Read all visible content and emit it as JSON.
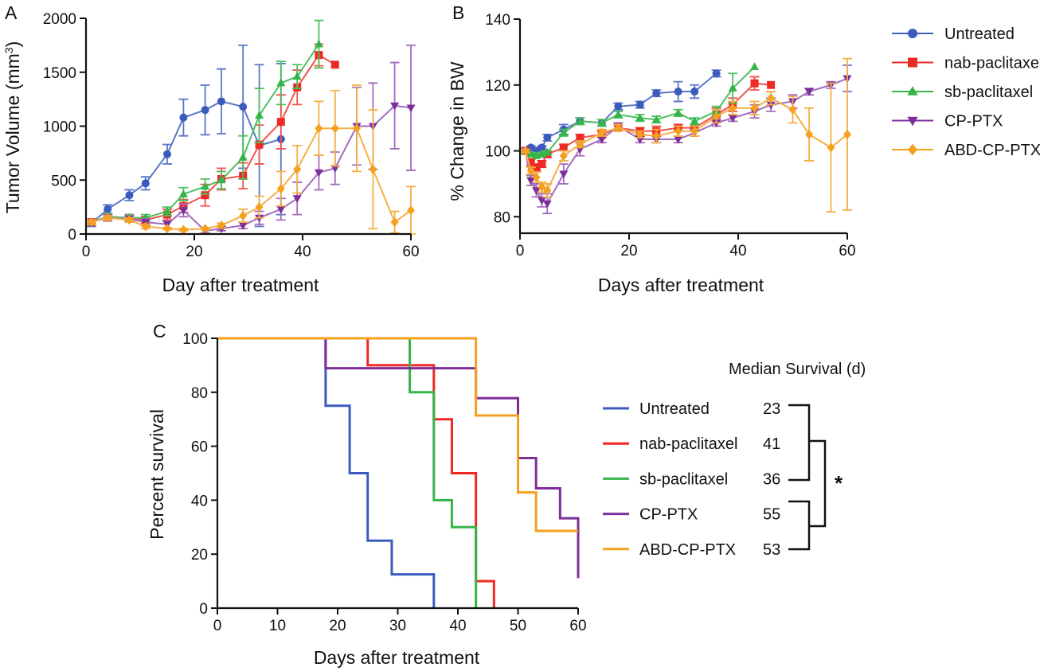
{
  "colors": {
    "Untreated": "#3b5bbd",
    "nab-paclitaxel": "#ee2a24",
    "sb-paclitaxel": "#35b44a",
    "CP-PTX": "#7d2f99",
    "ABD-CP-PTX": "#f5a01e"
  },
  "light_colors": {
    "Untreated": "#5a76c8",
    "nab-paclitaxel": "#f2524c",
    "sb-paclitaxel": "#4cc05e",
    "CP-PTX": "#a46cbe",
    "ABD-CP-PTX": "#f5ae45"
  },
  "markers": {
    "Untreated": "circle",
    "nab-paclitaxel": "square",
    "sb-paclitaxel": "triangle-up",
    "CP-PTX": "triangle-down",
    "ABD-CP-PTX": "diamond"
  },
  "legend": {
    "items": [
      "Untreated",
      "nab-paclitaxel",
      "sb-paclitaxel",
      "CP-PTX",
      "ABD-CP-PTX"
    ]
  },
  "median": {
    "title": "Median Survival (d)",
    "values": [
      "23",
      "41",
      "36",
      "55",
      "53"
    ],
    "star": "*"
  },
  "chart_data": [
    {
      "panel": "A",
      "type": "line",
      "xlabel": "Day after treatment",
      "ylabel": "Tumor Volume (mm3)",
      "ylabel_main": "Tumor Volume (mm",
      "ylabel_sup": "3",
      "ylabel_end": ")",
      "xlim": [
        0,
        60
      ],
      "ylim": [
        0,
        2000
      ],
      "xticks": [
        0,
        20,
        40,
        60
      ],
      "yticks": [
        0,
        500,
        1000,
        1500,
        2000
      ],
      "series": [
        {
          "name": "Untreated",
          "x": [
            1,
            4,
            8,
            11,
            15,
            18,
            22,
            25,
            29,
            32,
            36
          ],
          "y": [
            100,
            230,
            360,
            470,
            740,
            1080,
            1150,
            1230,
            1180,
            820,
            880
          ],
          "err": [
            30,
            40,
            50,
            60,
            90,
            170,
            230,
            300,
            570,
            750,
            700
          ]
        },
        {
          "name": "nab-paclitaxel",
          "x": [
            1,
            4,
            8,
            11,
            15,
            18,
            22,
            25,
            29,
            32,
            36,
            39,
            43,
            46
          ],
          "y": [
            110,
            160,
            150,
            130,
            180,
            260,
            360,
            510,
            540,
            830,
            1040,
            1360,
            1660,
            1570
          ],
          "err": [
            20,
            30,
            30,
            30,
            50,
            60,
            100,
            100,
            120,
            180,
            250,
            160,
            100,
            0
          ]
        },
        {
          "name": "sb-paclitaxel",
          "x": [
            1,
            4,
            8,
            11,
            15,
            18,
            22,
            25,
            29,
            32,
            36,
            39,
            43
          ],
          "y": [
            110,
            160,
            150,
            150,
            210,
            370,
            440,
            500,
            710,
            1100,
            1400,
            1460,
            1760
          ],
          "err": [
            20,
            30,
            30,
            30,
            40,
            60,
            70,
            80,
            200,
            250,
            200,
            110,
            220
          ]
        },
        {
          "name": "CP-PTX",
          "x": [
            1,
            4,
            8,
            11,
            15,
            18,
            22,
            25,
            29,
            32,
            36,
            39,
            43,
            46,
            50,
            53,
            57,
            60
          ],
          "y": [
            110,
            150,
            140,
            110,
            90,
            220,
            30,
            50,
            80,
            150,
            230,
            330,
            570,
            610,
            1000,
            1000,
            1190,
            1170
          ],
          "err": [
            20,
            30,
            30,
            30,
            30,
            60,
            20,
            20,
            30,
            60,
            100,
            150,
            160,
            150,
            360,
            400,
            400,
            580
          ]
        },
        {
          "name": "ABD-CP-PTX",
          "x": [
            1,
            4,
            8,
            11,
            15,
            18,
            22,
            25,
            29,
            32,
            36,
            39,
            43,
            46,
            50,
            53,
            57,
            60
          ],
          "y": [
            110,
            150,
            130,
            70,
            50,
            40,
            50,
            80,
            170,
            250,
            420,
            600,
            980,
            980,
            980,
            600,
            110,
            220
          ],
          "err": [
            20,
            20,
            20,
            20,
            10,
            10,
            10,
            20,
            60,
            100,
            160,
            220,
            250,
            350,
            400,
            550,
            100,
            220
          ]
        }
      ]
    },
    {
      "panel": "B",
      "type": "line",
      "xlabel": "Days after treatment",
      "ylabel": "% Change in BW",
      "xlim": [
        0,
        60
      ],
      "ylim": [
        75,
        140
      ],
      "xticks": [
        0,
        20,
        40,
        60
      ],
      "yticks": [
        80,
        100,
        120,
        140
      ],
      "series": [
        {
          "name": "Untreated",
          "x": [
            1,
            2,
            3,
            4,
            5,
            8,
            11,
            15,
            18,
            22,
            25,
            29,
            32,
            36
          ],
          "y": [
            100,
            101,
            100,
            101,
            104,
            106.5,
            109,
            108.5,
            113.5,
            114,
            117.5,
            118,
            118,
            123.5
          ],
          "err": [
            0.5,
            0.5,
            0.5,
            0.5,
            1,
            1.5,
            1,
            1,
            1,
            1,
            1,
            3,
            2,
            1
          ]
        },
        {
          "name": "nab-paclitaxel",
          "x": [
            1,
            2,
            3,
            4,
            5,
            8,
            11,
            15,
            18,
            22,
            25,
            29,
            32,
            36,
            39,
            43,
            46
          ],
          "y": [
            100,
            96.5,
            95,
            96,
            99,
            101,
            104,
            105,
            107,
            106,
            106,
            107,
            107,
            111,
            114,
            120.5,
            120
          ],
          "err": [
            0.5,
            1,
            1,
            1,
            1,
            1,
            1,
            1,
            1,
            1,
            1.5,
            1,
            1,
            2,
            2,
            2,
            0
          ]
        },
        {
          "name": "sb-paclitaxel",
          "x": [
            1,
            2,
            3,
            4,
            5,
            8,
            11,
            15,
            18,
            22,
            25,
            29,
            32,
            36,
            39,
            43
          ],
          "y": [
            100,
            99,
            98.5,
            99,
            99.5,
            105.5,
            109,
            108.5,
            111,
            110,
            109.5,
            111.5,
            109,
            112,
            119,
            125.5
          ],
          "err": [
            0.5,
            0.5,
            0.5,
            0.5,
            0.5,
            1,
            1,
            1,
            1,
            1,
            1,
            1,
            1,
            1.5,
            4.5,
            0
          ]
        },
        {
          "name": "CP-PTX",
          "x": [
            1,
            2,
            3,
            4,
            5,
            8,
            11,
            15,
            18,
            22,
            25,
            29,
            32,
            36,
            39,
            43,
            46,
            50,
            53,
            57,
            60
          ],
          "y": [
            100,
            91,
            88,
            85,
            84,
            93,
            100.5,
            103.5,
            107.5,
            103.5,
            103.5,
            103.5,
            105.5,
            108.5,
            110,
            112,
            114,
            115,
            118,
            120,
            122
          ],
          "err": [
            0.5,
            1.5,
            2,
            2,
            3,
            3,
            2,
            1,
            1,
            1,
            1,
            1,
            1,
            1,
            1,
            2,
            2,
            2,
            1,
            1,
            4
          ]
        },
        {
          "name": "ABD-CP-PTX",
          "x": [
            1,
            2,
            3,
            4,
            5,
            8,
            11,
            15,
            18,
            22,
            25,
            29,
            32,
            36,
            39,
            43,
            46,
            50,
            53,
            57,
            60
          ],
          "y": [
            100,
            94,
            92,
            89,
            88,
            98.5,
            102,
            105.5,
            107,
            105,
            104.5,
            106,
            106,
            110.5,
            113,
            113,
            116,
            112.5,
            105,
            101,
            105
          ],
          "err": [
            0.5,
            1,
            1.5,
            1.5,
            2,
            1.5,
            1,
            1,
            1,
            1,
            2,
            1.5,
            1.5,
            2,
            2,
            2,
            2,
            4,
            8,
            19.5,
            23
          ]
        }
      ]
    },
    {
      "panel": "C",
      "type": "line",
      "xlabel": "Days after treatment",
      "ylabel": "Percent survival",
      "xlim": [
        0,
        60
      ],
      "ylim": [
        0,
        100
      ],
      "xticks": [
        0,
        10,
        20,
        30,
        40,
        50,
        60
      ],
      "yticks": [
        0,
        20,
        40,
        60,
        80,
        100
      ],
      "series": [
        {
          "name": "Untreated",
          "steps": [
            [
              0,
              100
            ],
            [
              18,
              75
            ],
            [
              22,
              50
            ],
            [
              25,
              25
            ],
            [
              29,
              12.5
            ],
            [
              36,
              0
            ]
          ],
          "end": 36
        },
        {
          "name": "nab-paclitaxel",
          "steps": [
            [
              0,
              100
            ],
            [
              25,
              90
            ],
            [
              32,
              90
            ],
            [
              36,
              70
            ],
            [
              39,
              50
            ],
            [
              43,
              30
            ],
            [
              43,
              10
            ],
            [
              46,
              0
            ]
          ],
          "end": 46
        },
        {
          "name": "sb-paclitaxel",
          "steps": [
            [
              0,
              100
            ],
            [
              32,
              80
            ],
            [
              36,
              40
            ],
            [
              39,
              30
            ],
            [
              43,
              0
            ]
          ],
          "end": 43
        },
        {
          "name": "CP-PTX",
          "steps": [
            [
              0,
              100
            ],
            [
              18,
              88.9
            ],
            [
              43,
              77.8
            ],
            [
              50,
              55.6
            ],
            [
              53,
              44.4
            ],
            [
              57,
              33.3
            ],
            [
              60,
              11.1
            ]
          ],
          "end": 60
        },
        {
          "name": "ABD-CP-PTX",
          "steps": [
            [
              0,
              100
            ],
            [
              43,
              71.4
            ],
            [
              50,
              42.9
            ],
            [
              53,
              28.6
            ]
          ],
          "end": 60
        }
      ]
    }
  ]
}
